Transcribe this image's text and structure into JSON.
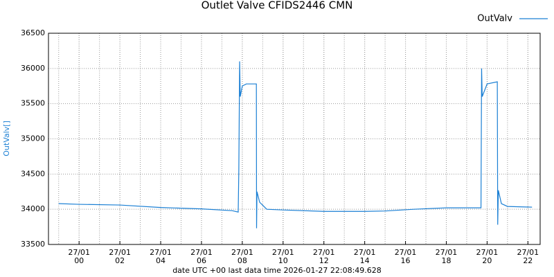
{
  "chart_data": {
    "type": "line",
    "title": "Outlet Valve CFIDS2446 CMN",
    "x_label": "date UTC +00 last data time 2026-01-27 22:08:49.628",
    "y_label": "OutValv[]",
    "legend": "top-right",
    "grid": true,
    "xlim": [
      -1.5,
      22.6
    ],
    "ylim": [
      33500,
      36500
    ],
    "yticks": [
      33500,
      34000,
      34500,
      35000,
      35500,
      36000,
      36500
    ],
    "xticks": [
      {
        "value": 0,
        "label": "27/01\n00"
      },
      {
        "value": 2,
        "label": "27/01\n02"
      },
      {
        "value": 4,
        "label": "27/01\n04"
      },
      {
        "value": 6,
        "label": "27/01\n06"
      },
      {
        "value": 8,
        "label": "27/01\n08"
      },
      {
        "value": 10,
        "label": "27/01\n10"
      },
      {
        "value": 12,
        "label": "27/01\n12"
      },
      {
        "value": 14,
        "label": "27/01\n14"
      },
      {
        "value": 16,
        "label": "27/01\n16"
      },
      {
        "value": 18,
        "label": "27/01\n18"
      },
      {
        "value": 20,
        "label": "27/01\n20"
      },
      {
        "value": 22,
        "label": "27/01\n22"
      }
    ],
    "x": [
      -1.0,
      0,
      2,
      4,
      6,
      7.5,
      7.8,
      7.83,
      7.87,
      7.9,
      8.0,
      8.2,
      8.69,
      8.7,
      8.72,
      8.85,
      9.2,
      10,
      12,
      14,
      15,
      16.4,
      18,
      19.7,
      19.73,
      19.76,
      20.0,
      20.5,
      20.52,
      20.55,
      20.7,
      21,
      22.2
    ],
    "series": [
      {
        "name": "OutValv",
        "color": "#1a7fd4",
        "values": [
          34080,
          34070,
          34060,
          34025,
          34005,
          33980,
          33960,
          34550,
          36100,
          35600,
          35750,
          35780,
          35780,
          33730,
          34250,
          34100,
          34000,
          33990,
          33970,
          33970,
          33975,
          34000,
          34020,
          34020,
          36000,
          35600,
          35780,
          35810,
          33780,
          34270,
          34080,
          34040,
          34030
        ]
      }
    ]
  }
}
